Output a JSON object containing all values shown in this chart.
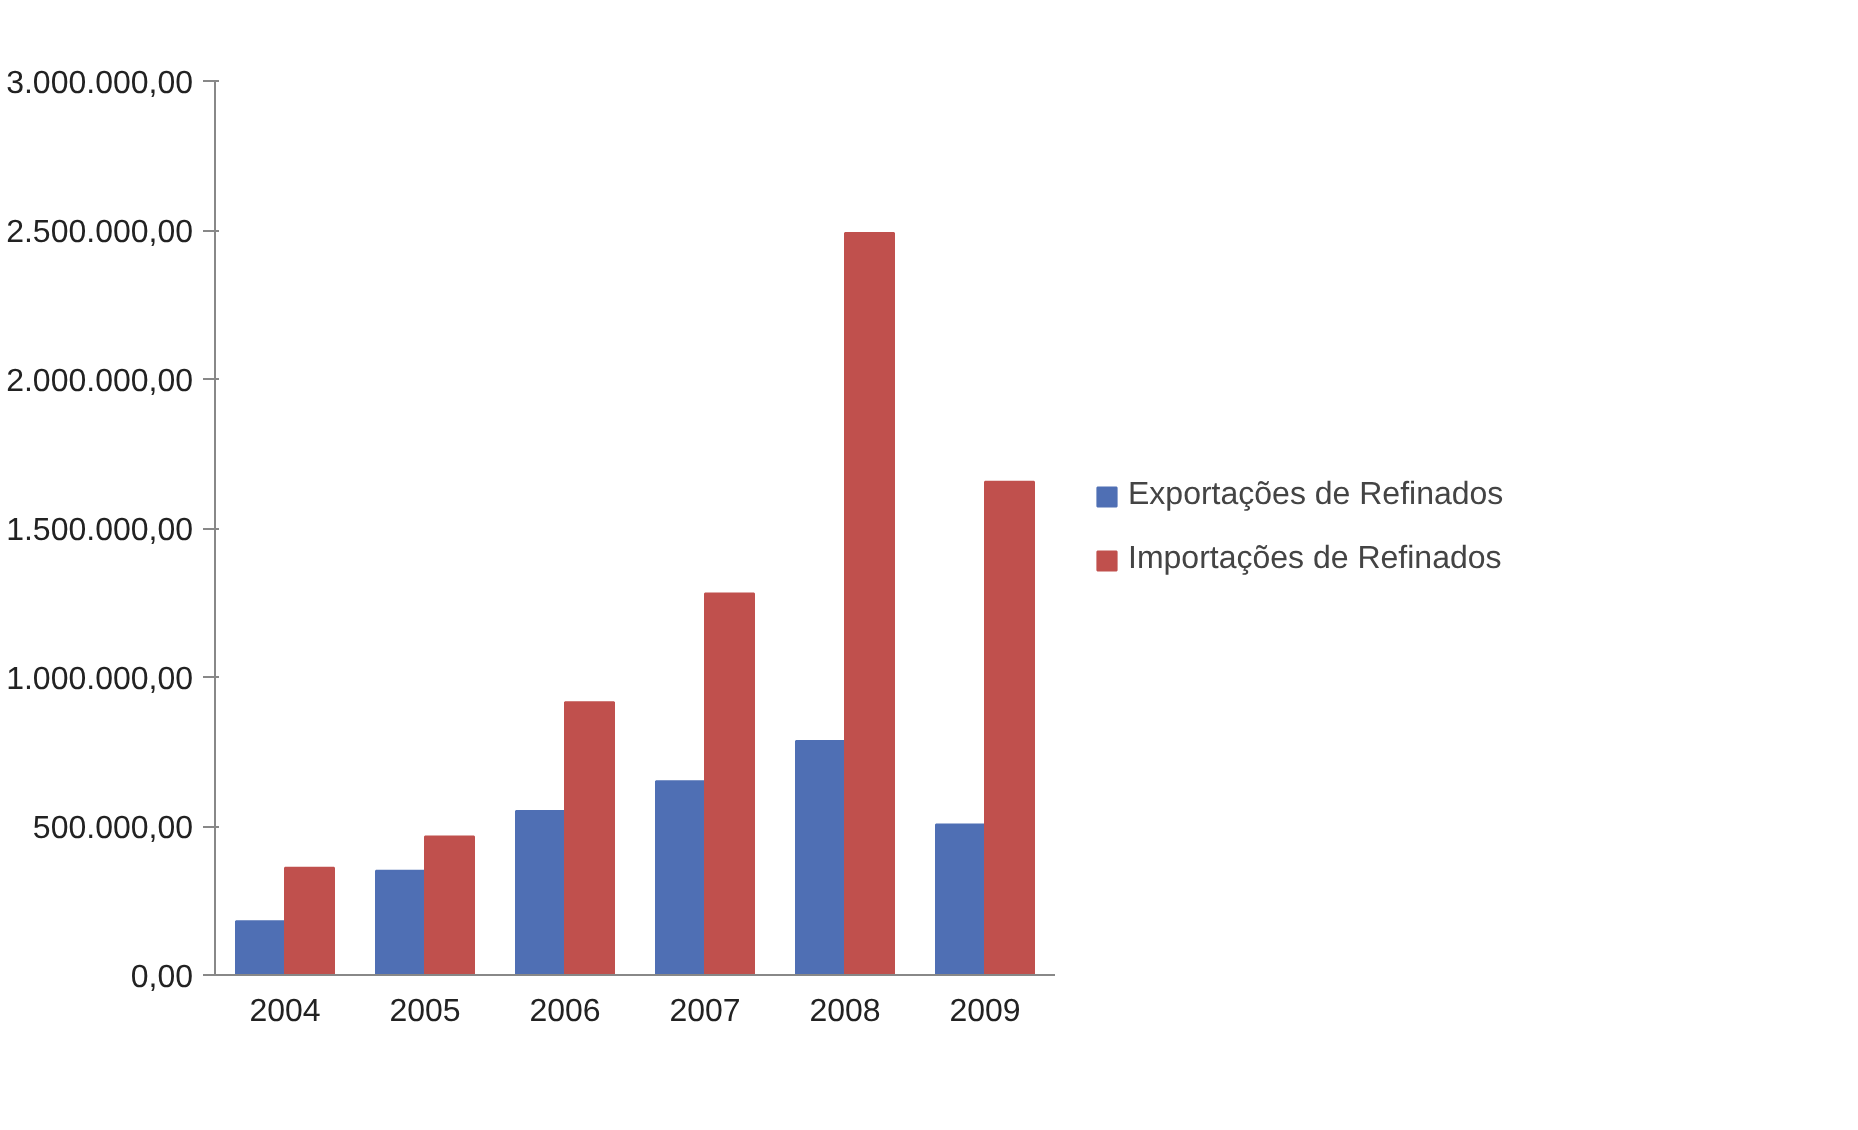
{
  "chart_data": {
    "type": "bar",
    "categories": [
      "2004",
      "2005",
      "2006",
      "2007",
      "2008",
      "2009"
    ],
    "series": [
      {
        "name": "Exportações de Refinados",
        "color": "#4f6fb4",
        "values": [
          180000,
          350000,
          550000,
          650000,
          785000,
          505000
        ]
      },
      {
        "name": "Importações de Refinados",
        "color": "#c0504d",
        "values": [
          360000,
          465000,
          915000,
          1280000,
          2490000,
          1655000
        ]
      }
    ],
    "ylim": [
      0,
      3000000
    ],
    "yticks": [
      {
        "value": 0,
        "label": "0,00"
      },
      {
        "value": 500000,
        "label": "500.000,00"
      },
      {
        "value": 1000000,
        "label": "1.000.000,00"
      },
      {
        "value": 1500000,
        "label": "1.500.000,00"
      },
      {
        "value": 2000000,
        "label": "2.000.000,00"
      },
      {
        "value": 2500000,
        "label": "2.500.000,00"
      },
      {
        "value": 3000000,
        "label": "3.000.000,00"
      }
    ],
    "grid": false,
    "legend": "right"
  }
}
